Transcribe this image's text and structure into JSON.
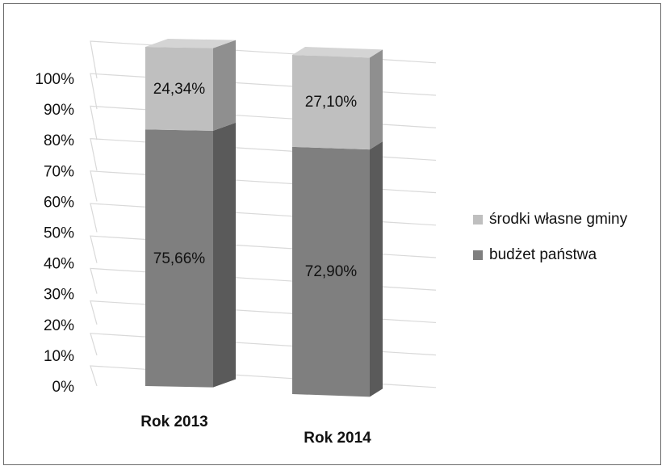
{
  "chart_data": {
    "type": "bar",
    "stacked": true,
    "three_d": true,
    "categories": [
      "Rok 2013",
      "Rok 2014"
    ],
    "series": [
      {
        "name": "budżet państwa",
        "values": [
          75.66,
          72.9
        ],
        "labels": [
          "75,66%",
          "72,90%"
        ],
        "color": "#7f7f7f",
        "side": "#5a5a5a",
        "top": "#8c8c8c"
      },
      {
        "name": "środki własne gminy",
        "values": [
          24.34,
          27.1
        ],
        "labels": [
          "24,34%",
          "27,10%"
        ],
        "color": "#bfbfbf",
        "side": "#8f8f8f",
        "top": "#d4d4d4"
      }
    ],
    "yticks": [
      "0%",
      "10%",
      "20%",
      "30%",
      "40%",
      "50%",
      "60%",
      "70%",
      "80%",
      "90%",
      "100%"
    ],
    "ylim": [
      0,
      100
    ],
    "grid": true,
    "legend_position": "right"
  }
}
